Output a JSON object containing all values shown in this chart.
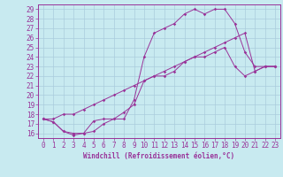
{
  "xlabel": "Windchill (Refroidissement éolien,°C)",
  "bg_color": "#c8eaf0",
  "line_color": "#993399",
  "grid_color": "#aaccdd",
  "spine_color": "#993399",
  "xlim": [
    -0.5,
    23.5
  ],
  "ylim": [
    15.5,
    29.5
  ],
  "yticks": [
    16,
    17,
    18,
    19,
    20,
    21,
    22,
    23,
    24,
    25,
    26,
    27,
    28,
    29
  ],
  "xticks": [
    0,
    1,
    2,
    3,
    4,
    5,
    6,
    7,
    8,
    9,
    10,
    11,
    12,
    13,
    14,
    15,
    16,
    17,
    18,
    19,
    20,
    21,
    22,
    23
  ],
  "series": [
    {
      "x": [
        0,
        1,
        2,
        3,
        4,
        5,
        6,
        7,
        8,
        9,
        10,
        11,
        12,
        13,
        14,
        15,
        16,
        17,
        18,
        19,
        20,
        21,
        22,
        23
      ],
      "y": [
        17.5,
        17.2,
        16.2,
        15.8,
        16.0,
        17.3,
        17.5,
        17.5,
        17.5,
        19.5,
        24.0,
        26.5,
        27.0,
        27.5,
        28.5,
        29.0,
        28.5,
        29.0,
        29.0,
        27.5,
        24.5,
        23.0,
        23.0,
        23.0
      ]
    },
    {
      "x": [
        0,
        1,
        2,
        3,
        4,
        5,
        6,
        7,
        8,
        9,
        10,
        11,
        12,
        13,
        14,
        15,
        16,
        17,
        18,
        19,
        20,
        21,
        22,
        23
      ],
      "y": [
        17.5,
        17.5,
        18.0,
        18.0,
        18.5,
        19.0,
        19.5,
        20.0,
        20.5,
        21.0,
        21.5,
        22.0,
        22.5,
        23.0,
        23.5,
        24.0,
        24.5,
        25.0,
        25.5,
        26.0,
        26.5,
        22.5,
        23.0,
        23.0
      ]
    },
    {
      "x": [
        0,
        1,
        2,
        3,
        4,
        5,
        6,
        7,
        8,
        9,
        10,
        11,
        12,
        13,
        14,
        15,
        16,
        17,
        18,
        19,
        20,
        21,
        22,
        23
      ],
      "y": [
        17.5,
        17.2,
        16.2,
        16.0,
        16.0,
        16.2,
        17.0,
        17.5,
        18.2,
        19.0,
        21.5,
        22.0,
        22.0,
        22.5,
        23.5,
        24.0,
        24.0,
        24.5,
        25.0,
        23.0,
        22.0,
        22.5,
        23.0,
        23.0
      ]
    }
  ],
  "tick_fontsize": 5.5,
  "xlabel_fontsize": 5.5
}
